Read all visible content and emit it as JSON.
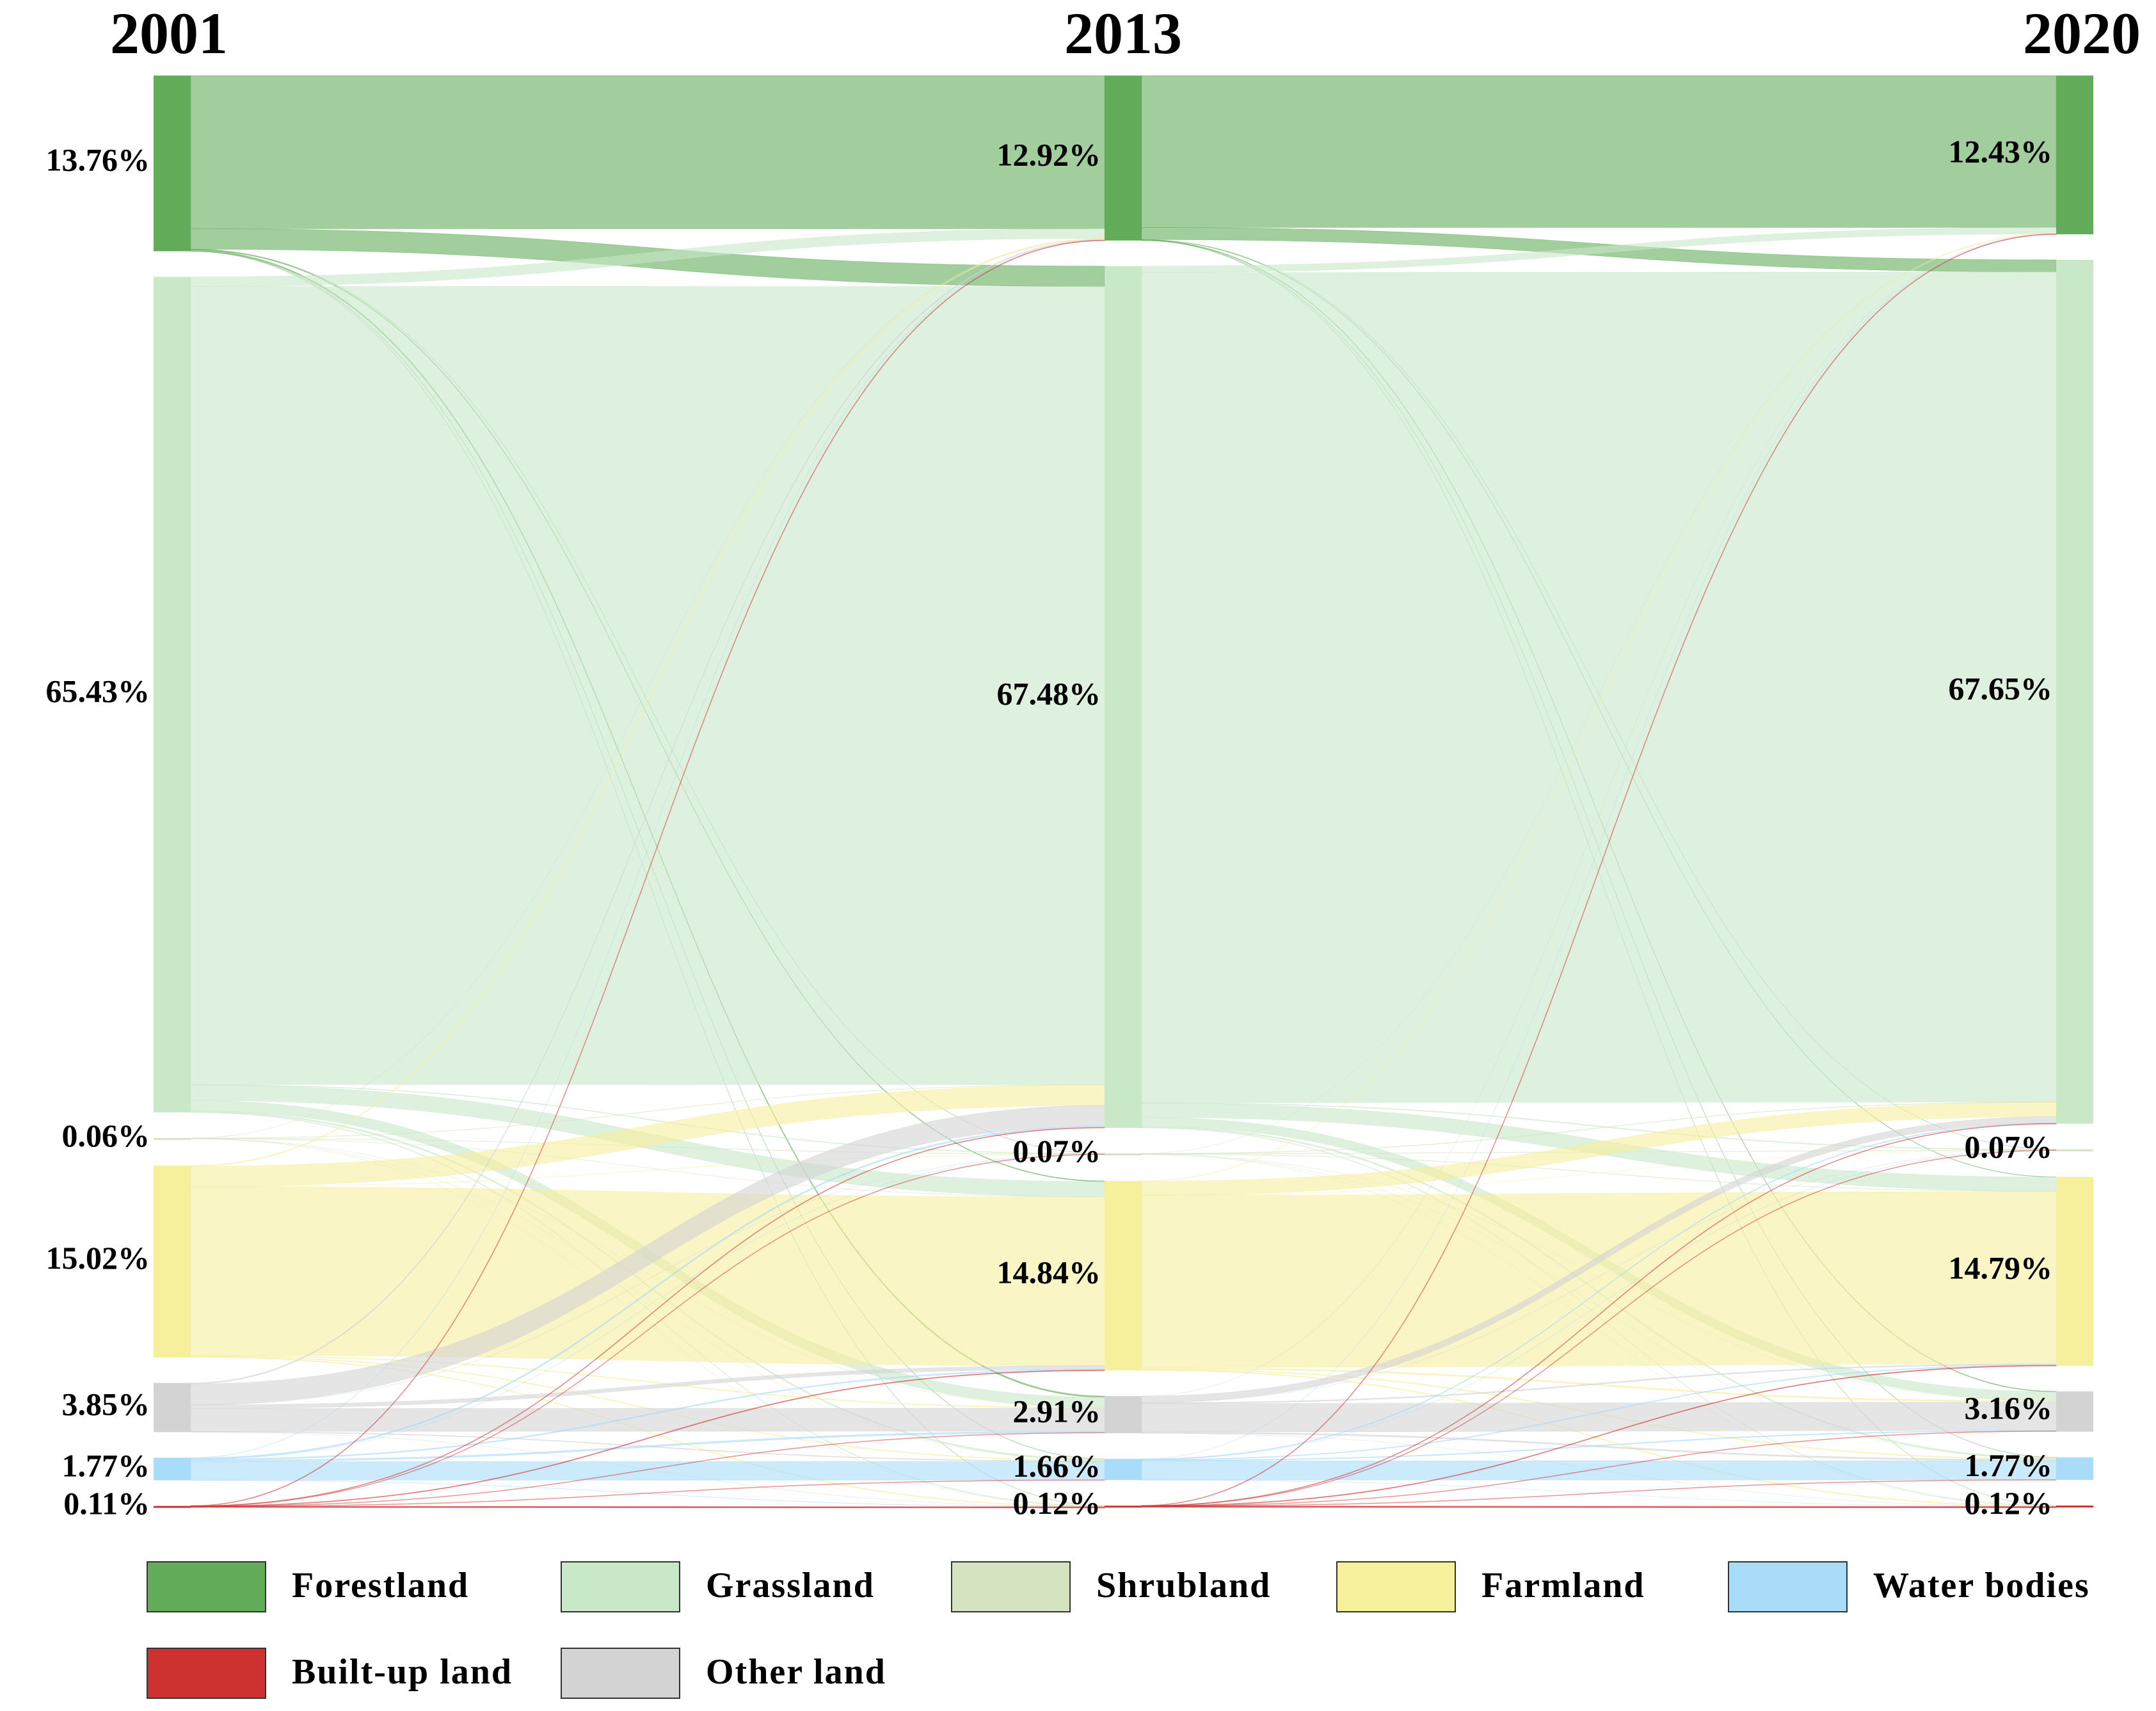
{
  "chart_data": {
    "type": "sankey",
    "categories": [
      "Forestland",
      "Grassland",
      "Shrubland",
      "Farmland",
      "Water bodies",
      "Built-up land",
      "Other land"
    ],
    "colors": [
      "#63ad5a",
      "#c8e8c8",
      "#d5e3c0",
      "#f6ef9c",
      "#a9dcf9",
      "#cf3030",
      "#d3d3d3"
    ],
    "series": [
      {
        "name": "2001",
        "values": [
          13.76,
          65.43,
          0.06,
          15.02,
          1.77,
          0.11,
          3.85
        ],
        "value_labels": [
          "13.76%",
          "65.43%",
          "0.06%",
          "15.02%",
          "1.77%",
          "0.11%",
          "3.85%"
        ]
      },
      {
        "name": "2013",
        "values": [
          12.92,
          67.48,
          0.07,
          14.84,
          1.66,
          0.12,
          2.91
        ],
        "value_labels": [
          "12.92%",
          "67.48%",
          "0.07%",
          "14.84%",
          "1.66%",
          "0.12%",
          "2.91%"
        ]
      },
      {
        "name": "2020",
        "values": [
          12.43,
          67.65,
          0.07,
          14.79,
          1.77,
          0.12,
          3.16
        ],
        "value_labels": [
          "12.43%",
          "67.65%",
          "0.07%",
          "14.79%",
          "1.77%",
          "0.12%",
          "3.16%"
        ]
      }
    ],
    "transitions": [
      [
        [
          12.0,
          1.6,
          0,
          0.05,
          0.01,
          0,
          0.1
        ],
        [
          0.75,
          62.5,
          0.04,
          1.2,
          0.1,
          0.04,
          0.8
        ],
        [
          0.01,
          0.02,
          0.02,
          0.01,
          0,
          0,
          0
        ],
        [
          0.06,
          1.6,
          0.01,
          13.2,
          0.05,
          0.05,
          0.05
        ],
        [
          0.01,
          0.1,
          0,
          0.08,
          1.45,
          0.01,
          0.12
        ],
        [
          0.01,
          0.01,
          0,
          0.02,
          0,
          0.07,
          0
        ],
        [
          0.08,
          1.64,
          0,
          0.28,
          0.05,
          0,
          1.8
        ]
      ],
      [
        [
          11.9,
          0.95,
          0,
          0.02,
          0.01,
          0,
          0.04
        ],
        [
          0.5,
          65.0,
          0.05,
          1.1,
          0.1,
          0.03,
          0.7
        ],
        [
          0,
          0.03,
          0.02,
          0.02,
          0,
          0,
          0
        ],
        [
          0.02,
          1.1,
          0,
          13.5,
          0.06,
          0.06,
          0.1
        ],
        [
          0,
          0.05,
          0,
          0.05,
          1.5,
          0,
          0.06
        ],
        [
          0.01,
          0.01,
          0,
          0.02,
          0,
          0.08,
          0
        ],
        [
          0,
          0.51,
          0,
          0.08,
          0.1,
          0,
          2.22
        ]
      ]
    ]
  }
}
